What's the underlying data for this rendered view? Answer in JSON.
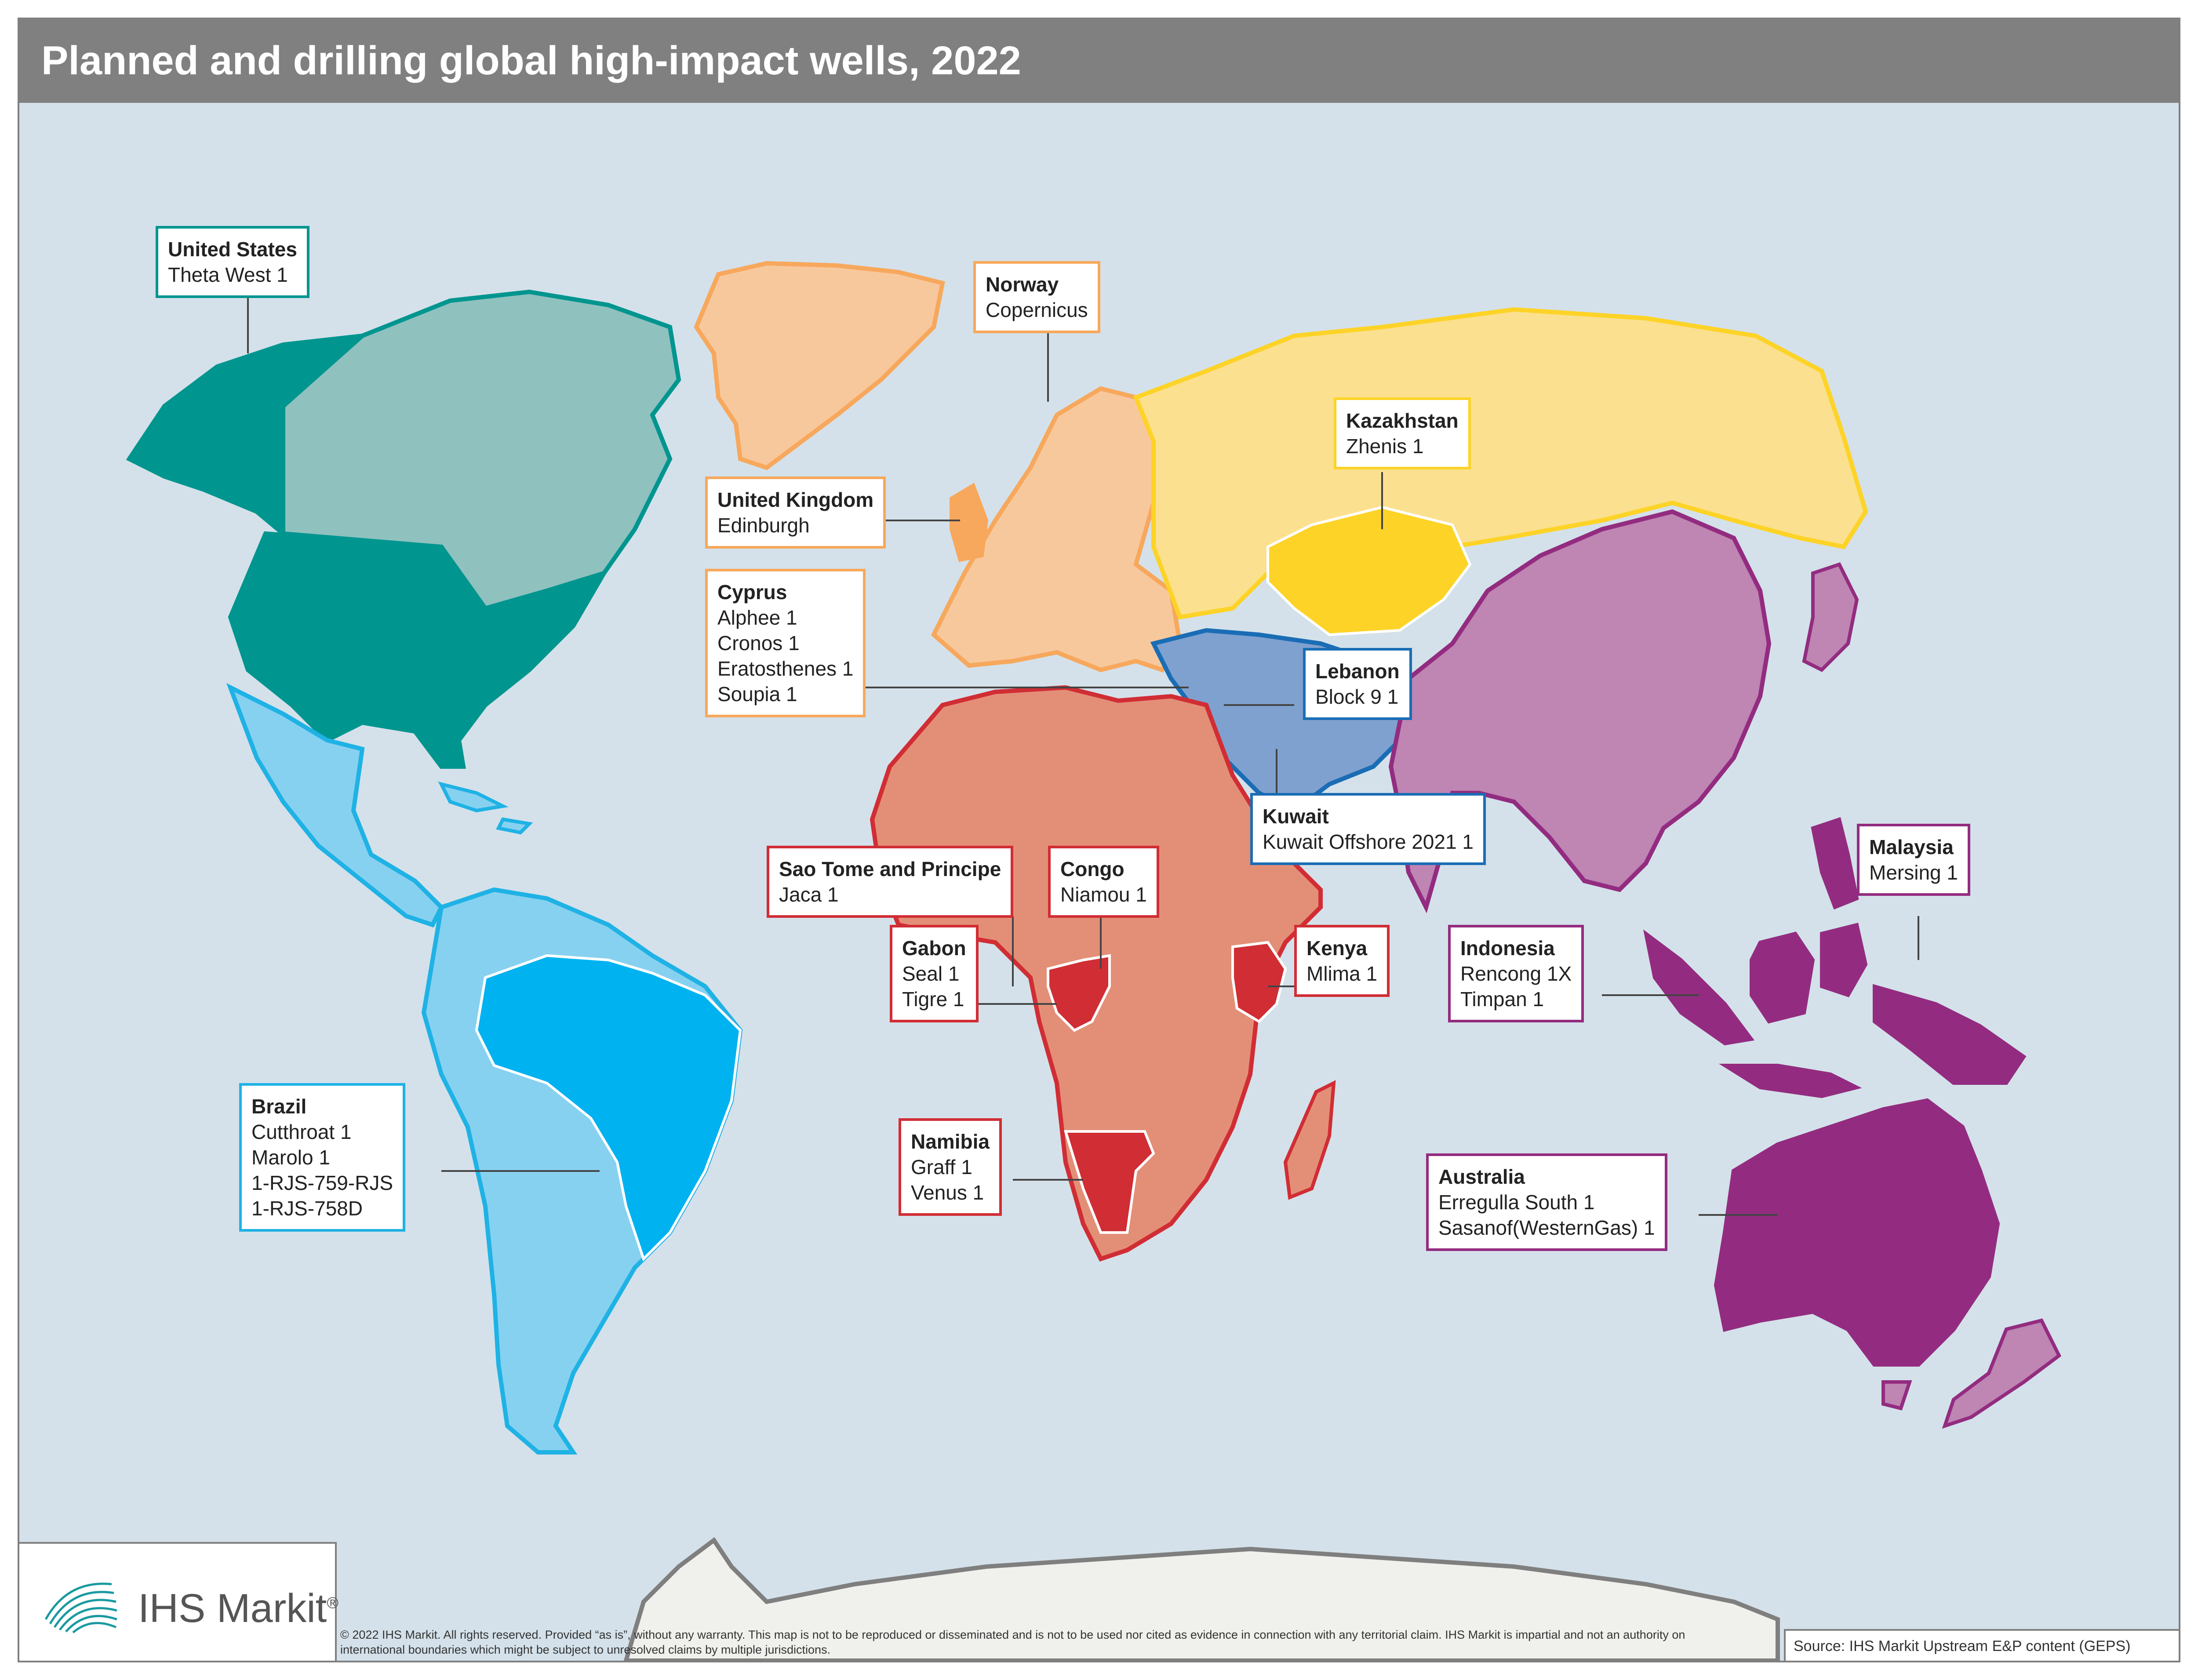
{
  "title": "Planned and drilling global high-impact wells, 2022",
  "labels": [
    {
      "country": "United States",
      "wells": [
        "Theta West 1"
      ],
      "color": "#00958f"
    },
    {
      "country": "Norway",
      "wells": [
        "Copernicus"
      ],
      "color": "#f7a85c"
    },
    {
      "country": "United Kingdom",
      "wells": [
        "Edinburgh"
      ],
      "color": "#f7a85c"
    },
    {
      "country": "Cyprus",
      "wells": [
        "Alphee 1",
        "Cronos 1",
        "Eratosthenes 1",
        "Soupia 1"
      ],
      "color": "#f7a85c"
    },
    {
      "country": "Kazakhstan",
      "wells": [
        "Zhenis 1"
      ],
      "color": "#fdd327"
    },
    {
      "country": "Lebanon",
      "wells": [
        "Block 9 1"
      ],
      "color": "#1a6db5"
    },
    {
      "country": "Kuwait",
      "wells": [
        "Kuwait Offshore 2021 1"
      ],
      "color": "#1a6db5"
    },
    {
      "country": "Sao Tome and Principe",
      "wells": [
        "Jaca 1"
      ],
      "color": "#d12d35"
    },
    {
      "country": "Congo",
      "wells": [
        "Niamou 1"
      ],
      "color": "#d12d35"
    },
    {
      "country": "Gabon",
      "wells": [
        "Seal 1",
        "Tigre 1"
      ],
      "color": "#d12d35"
    },
    {
      "country": "Kenya",
      "wells": [
        "Mlima 1"
      ],
      "color": "#d12d35"
    },
    {
      "country": "Namibia",
      "wells": [
        "Graff 1",
        "Venus 1"
      ],
      "color": "#d12d35"
    },
    {
      "country": "Malaysia",
      "wells": [
        "Mersing 1"
      ],
      "color": "#932c80"
    },
    {
      "country": "Indonesia",
      "wells": [
        "Rencong 1X",
        "Timpan 1"
      ],
      "color": "#932c80"
    },
    {
      "country": "Australia",
      "wells": [
        "Erregulla South 1",
        "Sasanof(WesternGas) 1"
      ],
      "color": "#932c80"
    },
    {
      "country": "Brazil",
      "wells": [
        "Cutthroat 1",
        "Marolo 1",
        "1-RJS-759-RJS",
        "1-RJS-758D"
      ],
      "color": "#1fb2e5"
    }
  ],
  "logo": {
    "text": "IHS Markit",
    "mark": "®"
  },
  "copyright": "© 2022 IHS Markit. All rights reserved.  Provided “as is”, without any warranty. This map is not to be reproduced or disseminated and is not to be used nor cited as evidence in connection with any territorial claim. IHS Markit is impartial and not an authority on international boundaries which might be subject to unresolved claims by multiple jurisdictions.",
  "source": "Source: IHS Markit Upstream E&P content (GEPS)",
  "region_colors": {
    "north_america": "#8fc1bf",
    "united_states": "#00958f",
    "latin_america": "#87d1f0",
    "brazil": "#00b2ef",
    "europe": "#f8c89d",
    "greenland": "#f8c89d",
    "russia": "#fbe08f",
    "kazakhstan": "#fdd327",
    "middle_east": "#7fa1cf",
    "africa": "#e38f77",
    "africa_highlight": "#d12d35",
    "asia": "#bf85b3",
    "oceania": "#932c80",
    "antarctica": "#f0f0ec"
  }
}
